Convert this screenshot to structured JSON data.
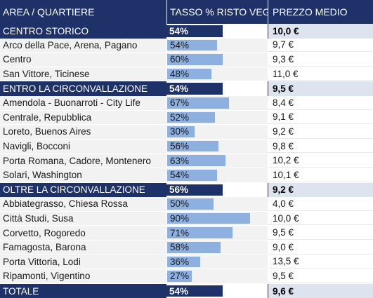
{
  "header": {
    "area": "AREA / QUARTIERE",
    "rate": "TASSO % RISTO VEG",
    "price": "PREZZO MEDIO"
  },
  "rows": [
    {
      "type": "group",
      "area": "CENTRO STORICO",
      "pct": "54%",
      "value": 0.54,
      "price": "10,0 €"
    },
    {
      "type": "plain",
      "area": "Arco della Pace, Arena, Pagano",
      "pct": "54%",
      "value": 0.54,
      "price": "9,7 €"
    },
    {
      "type": "plain",
      "area": "Centro",
      "pct": "60%",
      "value": 0.6,
      "price": "9,3 €"
    },
    {
      "type": "plain",
      "area": "San Vittore, Ticinese",
      "pct": "48%",
      "value": 0.48,
      "price": "11,0 €"
    },
    {
      "type": "group",
      "area": "ENTRO LA CIRCONVALLAZIONE",
      "pct": "54%",
      "value": 0.54,
      "price": "9,5 €"
    },
    {
      "type": "plain",
      "area": "Amendola - Buonarroti - City Life",
      "pct": "67%",
      "value": 0.67,
      "price": "8,4 €"
    },
    {
      "type": "plain",
      "area": "Centrale, Repubblica",
      "pct": "52%",
      "value": 0.52,
      "price": "9,1 €"
    },
    {
      "type": "plain",
      "area": "Loreto, Buenos Aires",
      "pct": "30%",
      "value": 0.3,
      "price": "9,2 €"
    },
    {
      "type": "plain",
      "area": "Navigli, Bocconi",
      "pct": "56%",
      "value": 0.56,
      "price": "9,8 €"
    },
    {
      "type": "plain",
      "area": "Porta Romana, Cadore, Montenero",
      "pct": "63%",
      "value": 0.63,
      "price": "10,2 €"
    },
    {
      "type": "plain",
      "area": "Solari, Washington",
      "pct": "54%",
      "value": 0.54,
      "price": "10,1 €"
    },
    {
      "type": "group",
      "area": "OLTRE LA CIRCONVALLAZIONE",
      "pct": "56%",
      "value": 0.56,
      "price": "9,2 €"
    },
    {
      "type": "plain",
      "area": "Abbiategrasso, Chiesa Rossa",
      "pct": "50%",
      "value": 0.5,
      "price": "4,0 €"
    },
    {
      "type": "plain",
      "area": "Città Studi, Susa",
      "pct": "90%",
      "value": 0.9,
      "price": "10,0 €"
    },
    {
      "type": "plain",
      "area": "Corvetto, Rogoredo",
      "pct": "71%",
      "value": 0.71,
      "price": "9,5 €"
    },
    {
      "type": "plain",
      "area": "Famagosta, Barona",
      "pct": "58%",
      "value": 0.58,
      "price": "9,0 €"
    },
    {
      "type": "plain",
      "area": "Porta Vittoria, Lodi",
      "pct": "36%",
      "value": 0.36,
      "price": "13,5 €"
    },
    {
      "type": "plain",
      "area": "Ripamonti, Vigentino",
      "pct": "27%",
      "value": 0.27,
      "price": "9,5 €"
    },
    {
      "type": "group",
      "area": "TOTALE",
      "pct": "54%",
      "value": 0.54,
      "price": "9,6 €"
    }
  ]
}
